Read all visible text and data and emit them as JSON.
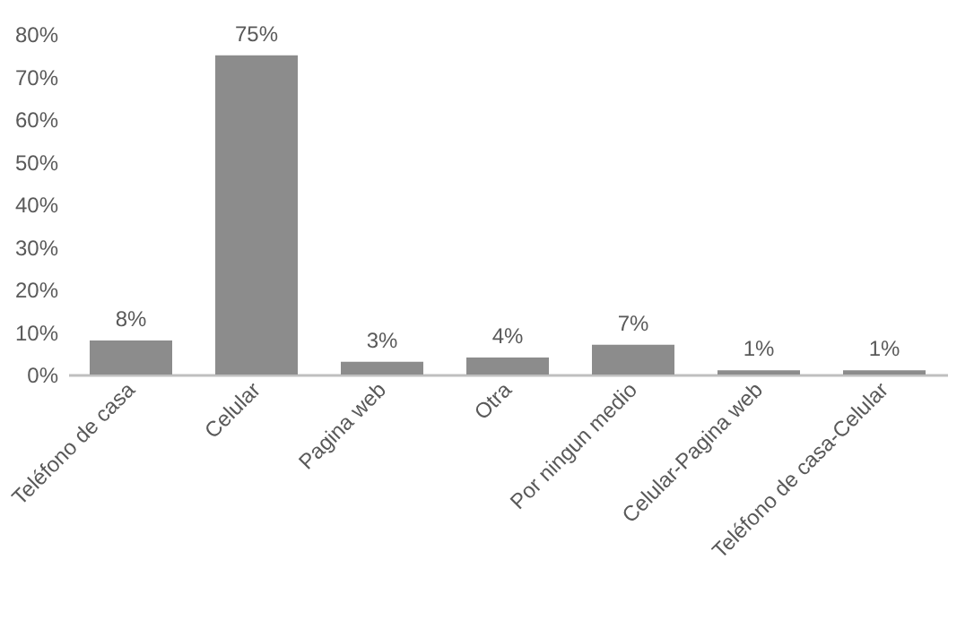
{
  "chart_data": {
    "type": "bar",
    "categories": [
      "Teléfono de casa",
      "Celular",
      "Pagina web",
      "Otra",
      "Por ningun medio",
      "Celular-Pagina web",
      "Teléfono de casa-Celular"
    ],
    "values": [
      8,
      75,
      3,
      4,
      7,
      1,
      1
    ],
    "color": "#8c8c8c",
    "ylim": [
      0,
      80
    ],
    "yticks": [
      {
        "value": 0,
        "label": "0%"
      },
      {
        "value": 10,
        "label": "10%"
      },
      {
        "value": 20,
        "label": "20%"
      },
      {
        "value": 30,
        "label": "30%"
      },
      {
        "value": 40,
        "label": "40%"
      },
      {
        "value": 50,
        "label": "50%"
      },
      {
        "value": 60,
        "label": "60%"
      },
      {
        "value": 70,
        "label": "70%"
      },
      {
        "value": 80,
        "label": "80%"
      }
    ],
    "value_labels": [
      "8%",
      "75%",
      "3%",
      "4%",
      "7%",
      "1%",
      "1%"
    ],
    "grid": false
  }
}
